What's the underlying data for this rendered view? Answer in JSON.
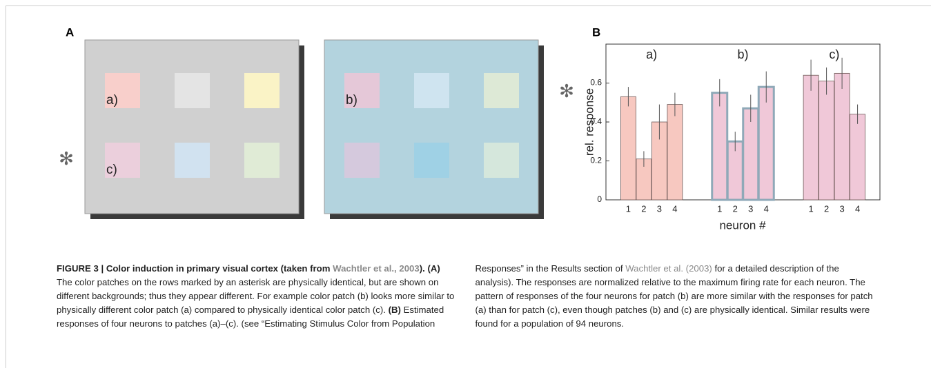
{
  "panel_a": {
    "label": "A",
    "asterisk": "✻",
    "panels": [
      {
        "background": "#d0d0d0",
        "patches": [
          {
            "color": "#f8cfcb",
            "label": "a)"
          },
          {
            "color": "#e4e4e4"
          },
          {
            "color": "#faf3c6"
          },
          {
            "color": "#ebcfdc",
            "label": "c)"
          },
          {
            "color": "#d1e2f0"
          },
          {
            "color": "#e0ebd6"
          }
        ]
      },
      {
        "background": "#b3d3de",
        "patches": [
          {
            "color": "#e5c8d8",
            "label": "b)"
          },
          {
            "color": "#cfe4f0"
          },
          {
            "color": "#dde9d6"
          },
          {
            "color": "#d5c9dd"
          },
          {
            "color": "#9fd1e5"
          },
          {
            "color": "#d5e7dc"
          }
        ]
      }
    ]
  },
  "panel_b": {
    "label": "B",
    "asterisk": "✻"
  },
  "chart_data": {
    "type": "bar",
    "ylabel": "rel. response",
    "xlabel": "neuron #",
    "categories": [
      "1",
      "2",
      "3",
      "4"
    ],
    "series": [
      {
        "name": "a)",
        "color": "#f7c8c0",
        "values": [
          0.53,
          0.21,
          0.4,
          0.49
        ],
        "errors": [
          0.05,
          0.04,
          0.09,
          0.06
        ]
      },
      {
        "name": "b)",
        "color": "#f0c8d8",
        "values": [
          0.55,
          0.3,
          0.47,
          0.58
        ],
        "errors": [
          0.07,
          0.05,
          0.07,
          0.08
        ]
      },
      {
        "name": "c)",
        "color": "#f0c8d8",
        "values": [
          0.64,
          0.61,
          0.65,
          0.44
        ],
        "errors": [
          0.08,
          0.07,
          0.08,
          0.05
        ]
      }
    ],
    "ylim": [
      0,
      0.8
    ],
    "yticks": [
      0,
      0.2,
      0.4,
      0.6
    ]
  },
  "caption": [
    {
      "text": "FIGURE 3 | Color induction in primary visual cortex (taken from ",
      "style": "bold"
    },
    {
      "text": "Wachtler et al., 2003",
      "style": "bold-link"
    },
    {
      "text": ").",
      "style": "bold"
    },
    {
      "text": " (A)",
      "style": "bold"
    },
    {
      "text": " The color patches on the rows marked by an asterisk are physically identical, but are shown on different backgrounds; thus they appear different. For example color patch (b) looks more similar to physically different color patch (a) compared to physically identical color patch (c). ",
      "style": "normal"
    },
    {
      "text": "(B)",
      "style": "bold"
    },
    {
      "text": " Estimated responses of four neurons to patches (a)–(c). (see “Estimating Stimulus Color from Population Responses” in the Results section of ",
      "style": "normal"
    },
    {
      "text": "Wachtler et al. (2003)",
      "style": "link"
    },
    {
      "text": " for a detailed description of the analysis). The responses are normalized relative to the maximum firing rate for each neuron. The pattern of responses of the four neurons for patch (b) are more similar with the responses for patch (a) than for patch (c), even though patches (b) and (c) are physically identical. Similar results were found for a population of 94 neurons.",
      "style": "normal"
    }
  ]
}
